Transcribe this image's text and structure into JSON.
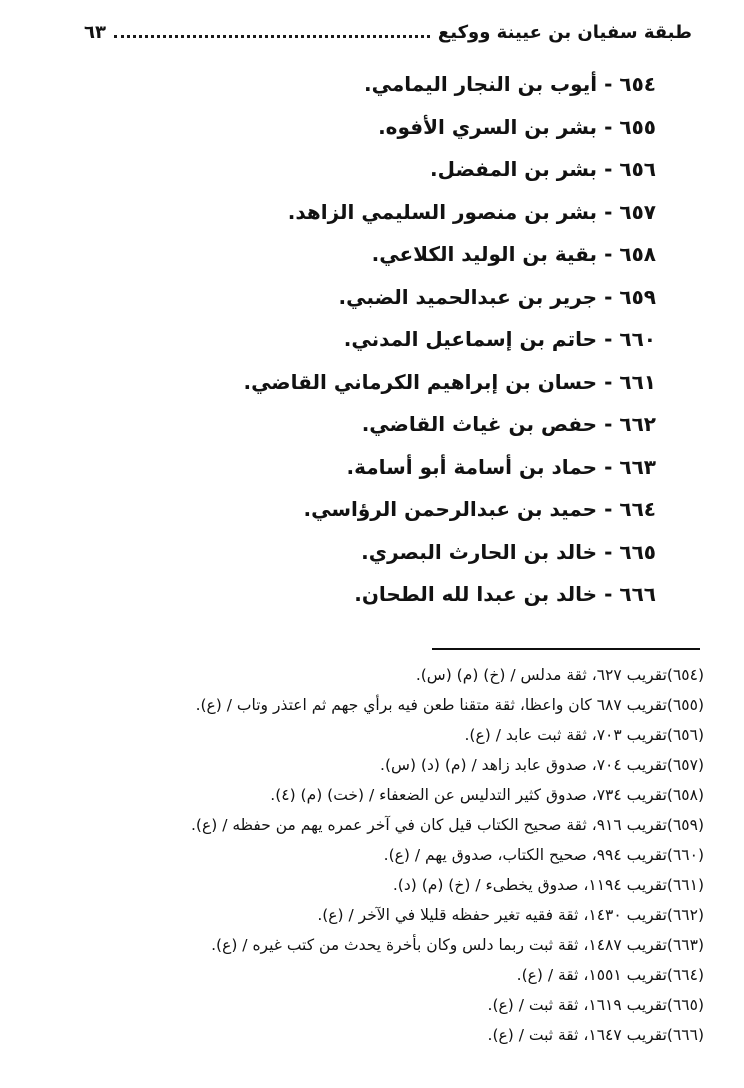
{
  "colors": {
    "ink": "#121212",
    "paper": "#ffffff"
  },
  "strings": {
    "dash": "-"
  },
  "header": {
    "title": "طبقة سفيان بن عيينة ووكيع",
    "page_number": "٦٣"
  },
  "entries": [
    {
      "number": "٦٥٤",
      "name": "أيوب بن النجار اليمامي."
    },
    {
      "number": "٦٥٥",
      "name": "بشر بن السري الأفوه."
    },
    {
      "number": "٦٥٦",
      "name": "بشر بن المفضل."
    },
    {
      "number": "٦٥٧",
      "name": "بشر بن منصور السليمي الزاهد."
    },
    {
      "number": "٦٥٨",
      "name": "بقية بن الوليد الكلاعي."
    },
    {
      "number": "٦٥٩",
      "name": "جرير بن عبدالحميد الضبي."
    },
    {
      "number": "٦٦٠",
      "name": "حاتم بن إسماعيل المدني."
    },
    {
      "number": "٦٦١",
      "name": "حسان بن إبراهيم الكرماني القاضي."
    },
    {
      "number": "٦٦٢",
      "name": "حفص بن غياث القاضي."
    },
    {
      "number": "٦٦٣",
      "name": "حماد بن أسامة أبو أسامة."
    },
    {
      "number": "٦٦٤",
      "name": "حميد بن عبدالرحمن الرؤاسي."
    },
    {
      "number": "٦٦٥",
      "name": "خالد بن الحارث البصري."
    },
    {
      "number": "٦٦٦",
      "name": "خالد بن عبدا لله الطحان."
    }
  ],
  "footnotes": [
    {
      "ref": "(٦٥٤)",
      "text": "تقريب ٦٢٧، ثقة مدلس / (خ) (م) (س)."
    },
    {
      "ref": "(٦٥٥)",
      "text": "تقريب ٦٨٧ كان واعظا، ثقة متقنا طعن فيه برأي جهم ثم اعتذر وتاب / (ع)."
    },
    {
      "ref": "(٦٥٦)",
      "text": "تقريب ٧٠٣، ثقة ثبت عابد / (ع)."
    },
    {
      "ref": "(٦٥٧)",
      "text": "تقريب ٧٠٤، صدوق عابد زاهد / (م) (د) (س)."
    },
    {
      "ref": "(٦٥٨)",
      "text": "تقريب ٧٣٤، صدوق كثير التدليس عن الضعفاء / (خت) (م) (٤)."
    },
    {
      "ref": "(٦٥٩)",
      "text": "تقريب ٩١٦، ثقة صحيح الكتاب قيل كان في آخر عمره يهم من حفظه / (ع)."
    },
    {
      "ref": "(٦٦٠)",
      "text": "تقريب ٩٩٤، صحيح الكتاب، صدوق يهم / (ع)."
    },
    {
      "ref": "(٦٦١)",
      "text": "تقريب ١١٩٤، صدوق يخطىء / (خ) (م) (د)."
    },
    {
      "ref": "(٦٦٢)",
      "text": "تقريب ١٤٣٠، ثقة فقيه تغير حفظه قليلا في الآخر / (ع)."
    },
    {
      "ref": "(٦٦٣)",
      "text": "تقريب ١٤٨٧، ثقة ثبت ربما دلس وكان بأخرة يحدث من كتب غيره / (ع)."
    },
    {
      "ref": "(٦٦٤)",
      "text": "تقريب ١٥٥١، ثقة / (ع)."
    },
    {
      "ref": "(٦٦٥)",
      "text": "تقريب ١٦١٩، ثقة ثبت / (ع)."
    },
    {
      "ref": "(٦٦٦)",
      "text": "تقريب ١٦٤٧، ثقة ثبت / (ع)."
    }
  ]
}
